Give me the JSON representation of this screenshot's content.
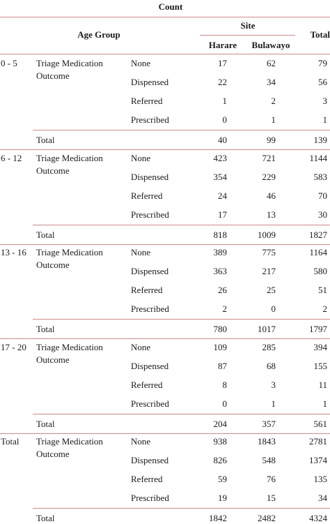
{
  "header": {
    "count_label": "Count",
    "age_group_label": "Age Group",
    "site_label": "Site",
    "harare_label": "Harare",
    "bulawayo_label": "Bulawayo",
    "total_label": "Total"
  },
  "groups": [
    {
      "age": "0 - 5",
      "variable_line1": "Triage Medication",
      "variable_line2": "Outcome",
      "rows": [
        {
          "outcome": "None",
          "harare": "17",
          "bulawayo": "62",
          "total": "79"
        },
        {
          "outcome": "Dispensed",
          "harare": "22",
          "bulawayo": "34",
          "total": "56"
        },
        {
          "outcome": "Referred",
          "harare": "1",
          "bulawayo": "2",
          "total": "3"
        },
        {
          "outcome": "Prescribed",
          "harare": "0",
          "bulawayo": "1",
          "total": "1"
        }
      ],
      "total_row": {
        "label": "Total",
        "harare": "40",
        "bulawayo": "99",
        "total": "139"
      }
    },
    {
      "age": "6 - 12",
      "variable_line1": "Triage Medication",
      "variable_line2": "Outcome",
      "rows": [
        {
          "outcome": "None",
          "harare": "423",
          "bulawayo": "721",
          "total": "1144"
        },
        {
          "outcome": "Dispensed",
          "harare": "354",
          "bulawayo": "229",
          "total": "583"
        },
        {
          "outcome": "Referred",
          "harare": "24",
          "bulawayo": "46",
          "total": "70"
        },
        {
          "outcome": "Prescribed",
          "harare": "17",
          "bulawayo": "13",
          "total": "30"
        }
      ],
      "total_row": {
        "label": "Total",
        "harare": "818",
        "bulawayo": "1009",
        "total": "1827"
      }
    },
    {
      "age": "13 - 16",
      "variable_line1": "Triage Medication",
      "variable_line2": "Outcome",
      "rows": [
        {
          "outcome": "None",
          "harare": "389",
          "bulawayo": "775",
          "total": "1164"
        },
        {
          "outcome": "Dispensed",
          "harare": "363",
          "bulawayo": "217",
          "total": "580"
        },
        {
          "outcome": "Referred",
          "harare": "26",
          "bulawayo": "25",
          "total": "51"
        },
        {
          "outcome": "Prescribed",
          "harare": "2",
          "bulawayo": "0",
          "total": "2"
        }
      ],
      "total_row": {
        "label": "Total",
        "harare": "780",
        "bulawayo": "1017",
        "total": "1797"
      }
    },
    {
      "age": "17 - 20",
      "variable_line1": "Triage Medication",
      "variable_line2": "Outcome",
      "rows": [
        {
          "outcome": "None",
          "harare": "109",
          "bulawayo": "285",
          "total": "394"
        },
        {
          "outcome": "Dispensed",
          "harare": "87",
          "bulawayo": "68",
          "total": "155"
        },
        {
          "outcome": "Referred",
          "harare": "8",
          "bulawayo": "3",
          "total": "11"
        },
        {
          "outcome": "Prescribed",
          "harare": "0",
          "bulawayo": "1",
          "total": "1"
        }
      ],
      "total_row": {
        "label": "Total",
        "harare": "204",
        "bulawayo": "357",
        "total": "561"
      }
    },
    {
      "age": "Total",
      "variable_line1": "Triage Medication",
      "variable_line2": "Outcome",
      "rows": [
        {
          "outcome": "None",
          "harare": "938",
          "bulawayo": "1843",
          "total": "2781"
        },
        {
          "outcome": "Dispensed",
          "harare": "826",
          "bulawayo": "548",
          "total": "1374"
        },
        {
          "outcome": "Referred",
          "harare": "59",
          "bulawayo": "76",
          "total": "135"
        },
        {
          "outcome": "Prescribed",
          "harare": "19",
          "bulawayo": "15",
          "total": "34"
        }
      ],
      "total_row": {
        "label": "Total",
        "harare": "1842",
        "bulawayo": "2482",
        "total": "4324"
      }
    }
  ],
  "colors": {
    "rule": "#c98a8a",
    "text": "#1a1a1a"
  }
}
